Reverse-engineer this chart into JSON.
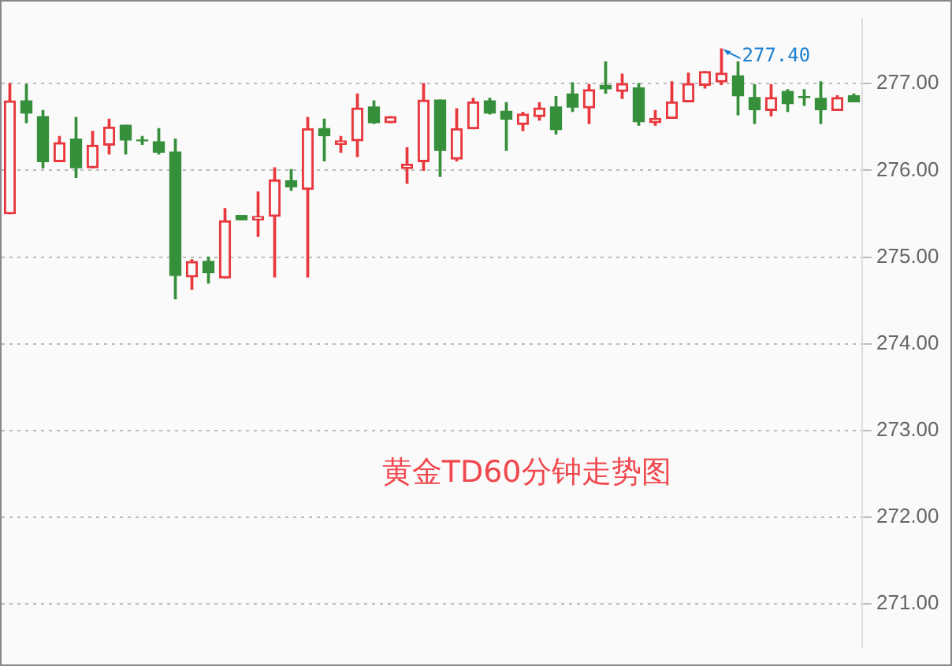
{
  "chart_data": {
    "type": "candlestick",
    "title": "黄金TD60分钟走势图",
    "categories": [
      null,
      null,
      null,
      null,
      null,
      null,
      null,
      null,
      null,
      null,
      null,
      null,
      null,
      null,
      null,
      null,
      null,
      null,
      null,
      null,
      null,
      null,
      null,
      null,
      null,
      null,
      null,
      null,
      null,
      null,
      null,
      null,
      null,
      null,
      null,
      null,
      null,
      null,
      null,
      null,
      null,
      null,
      null,
      null,
      null,
      null,
      null,
      null,
      null,
      null,
      null,
      null
    ],
    "ohlc": [
      [
        275.5,
        277.0,
        275.5,
        276.8
      ],
      [
        276.8,
        276.99,
        276.55,
        276.66
      ],
      [
        276.62,
        276.69,
        276.03,
        276.1
      ],
      [
        276.1,
        276.39,
        276.1,
        276.32
      ],
      [
        276.36,
        276.61,
        275.92,
        276.03
      ],
      [
        276.03,
        276.45,
        276.03,
        276.29
      ],
      [
        276.29,
        276.59,
        276.19,
        276.5
      ],
      [
        276.52,
        276.52,
        276.19,
        276.35
      ],
      [
        276.35,
        276.39,
        276.3,
        276.34
      ],
      [
        276.33,
        276.48,
        276.19,
        276.21
      ],
      [
        276.21,
        276.36,
        274.52,
        274.79
      ],
      [
        274.77,
        274.97,
        274.63,
        274.95
      ],
      [
        274.95,
        275.0,
        274.7,
        274.82
      ],
      [
        274.76,
        275.56,
        274.76,
        275.42
      ],
      [
        275.48,
        275.48,
        275.43,
        275.43
      ],
      [
        275.43,
        275.75,
        275.24,
        275.47
      ],
      [
        275.47,
        276.03,
        274.77,
        275.89
      ],
      [
        275.88,
        276.01,
        275.77,
        275.81
      ],
      [
        275.78,
        276.61,
        274.77,
        276.48
      ],
      [
        276.48,
        276.59,
        276.11,
        276.4
      ],
      [
        276.3,
        276.39,
        276.21,
        276.34
      ],
      [
        276.34,
        276.88,
        276.16,
        276.72
      ],
      [
        276.73,
        276.8,
        276.54,
        276.55
      ],
      [
        276.55,
        276.62,
        276.55,
        276.62
      ],
      [
        276.02,
        276.26,
        275.85,
        276.07
      ],
      [
        276.1,
        277.0,
        276.0,
        276.81
      ],
      [
        276.81,
        276.81,
        275.93,
        276.23
      ],
      [
        276.13,
        276.71,
        276.11,
        276.48
      ],
      [
        276.48,
        276.83,
        276.48,
        276.79
      ],
      [
        276.8,
        276.83,
        276.65,
        276.66
      ],
      [
        276.68,
        276.78,
        276.23,
        276.59
      ],
      [
        276.53,
        276.67,
        276.46,
        276.65
      ],
      [
        276.62,
        276.78,
        276.58,
        276.72
      ],
      [
        276.73,
        276.85,
        276.42,
        276.47
      ],
      [
        276.88,
        277.01,
        276.68,
        276.73
      ],
      [
        276.72,
        276.99,
        276.54,
        276.93
      ],
      [
        276.98,
        277.25,
        276.89,
        276.94
      ],
      [
        276.91,
        277.11,
        276.83,
        277.0
      ],
      [
        276.95,
        277.0,
        276.52,
        276.56
      ],
      [
        276.55,
        276.69,
        276.52,
        276.6
      ],
      [
        276.6,
        277.02,
        276.6,
        276.79
      ],
      [
        276.79,
        277.12,
        276.79,
        277.0
      ],
      [
        276.98,
        277.14,
        276.95,
        277.14
      ],
      [
        277.02,
        277.4,
        276.99,
        277.12
      ],
      [
        277.09,
        277.25,
        276.64,
        276.86
      ],
      [
        276.84,
        276.99,
        276.54,
        276.7
      ],
      [
        276.69,
        276.99,
        276.63,
        276.84
      ],
      [
        276.91,
        276.93,
        276.68,
        276.77
      ],
      [
        276.85,
        276.93,
        276.75,
        276.84
      ],
      [
        276.83,
        277.02,
        276.54,
        276.7
      ],
      [
        276.69,
        276.86,
        276.69,
        276.84
      ],
      [
        276.86,
        276.88,
        276.79,
        276.79
      ]
    ],
    "ylim": [
      270.5,
      277.75
    ],
    "yticks": [
      {
        "value": 271,
        "label": "271.00"
      },
      {
        "value": 272,
        "label": "272.00"
      },
      {
        "value": 273,
        "label": "273.00"
      },
      {
        "value": 274,
        "label": "274.00"
      },
      {
        "value": 275,
        "label": "275.00"
      },
      {
        "value": 276,
        "label": "276.00"
      },
      {
        "value": 277,
        "label": "277.00"
      }
    ],
    "grid": "y",
    "tick_labels": "y",
    "annotations": [
      "277.40"
    ]
  }
}
